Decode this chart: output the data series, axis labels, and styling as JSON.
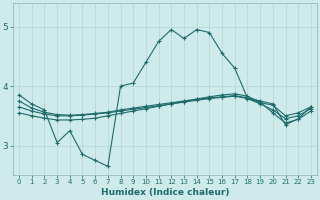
{
  "xlabel": "Humidex (Indice chaleur)",
  "xlim": [
    -0.5,
    23.5
  ],
  "ylim": [
    2.5,
    5.4
  ],
  "yticks": [
    3,
    4,
    5
  ],
  "xticks": [
    0,
    1,
    2,
    3,
    4,
    5,
    6,
    7,
    8,
    9,
    10,
    11,
    12,
    13,
    14,
    15,
    16,
    17,
    18,
    19,
    20,
    21,
    22,
    23
  ],
  "bg_color": "#ceeaea",
  "line_color": "#1e6b6b",
  "grid_color": "#b8d8d8",
  "line1": [
    3.85,
    3.7,
    3.6,
    3.05,
    3.25,
    2.85,
    2.75,
    2.65,
    4.0,
    4.05,
    4.4,
    4.75,
    4.95,
    4.8,
    4.95,
    4.9,
    4.55,
    4.3,
    3.8,
    3.75,
    3.7,
    3.35,
    3.45,
    3.65
  ],
  "line2": [
    3.75,
    3.63,
    3.56,
    3.52,
    3.51,
    3.52,
    3.54,
    3.56,
    3.6,
    3.63,
    3.66,
    3.69,
    3.72,
    3.75,
    3.78,
    3.8,
    3.82,
    3.84,
    3.8,
    3.72,
    3.68,
    3.5,
    3.55,
    3.65
  ],
  "line3": [
    3.65,
    3.58,
    3.53,
    3.5,
    3.5,
    3.51,
    3.53,
    3.55,
    3.58,
    3.61,
    3.64,
    3.67,
    3.7,
    3.73,
    3.76,
    3.79,
    3.81,
    3.83,
    3.79,
    3.7,
    3.6,
    3.45,
    3.5,
    3.62
  ],
  "line4": [
    3.55,
    3.5,
    3.46,
    3.43,
    3.43,
    3.44,
    3.46,
    3.5,
    3.54,
    3.58,
    3.62,
    3.66,
    3.7,
    3.74,
    3.78,
    3.82,
    3.85,
    3.87,
    3.83,
    3.73,
    3.55,
    3.38,
    3.44,
    3.58
  ]
}
